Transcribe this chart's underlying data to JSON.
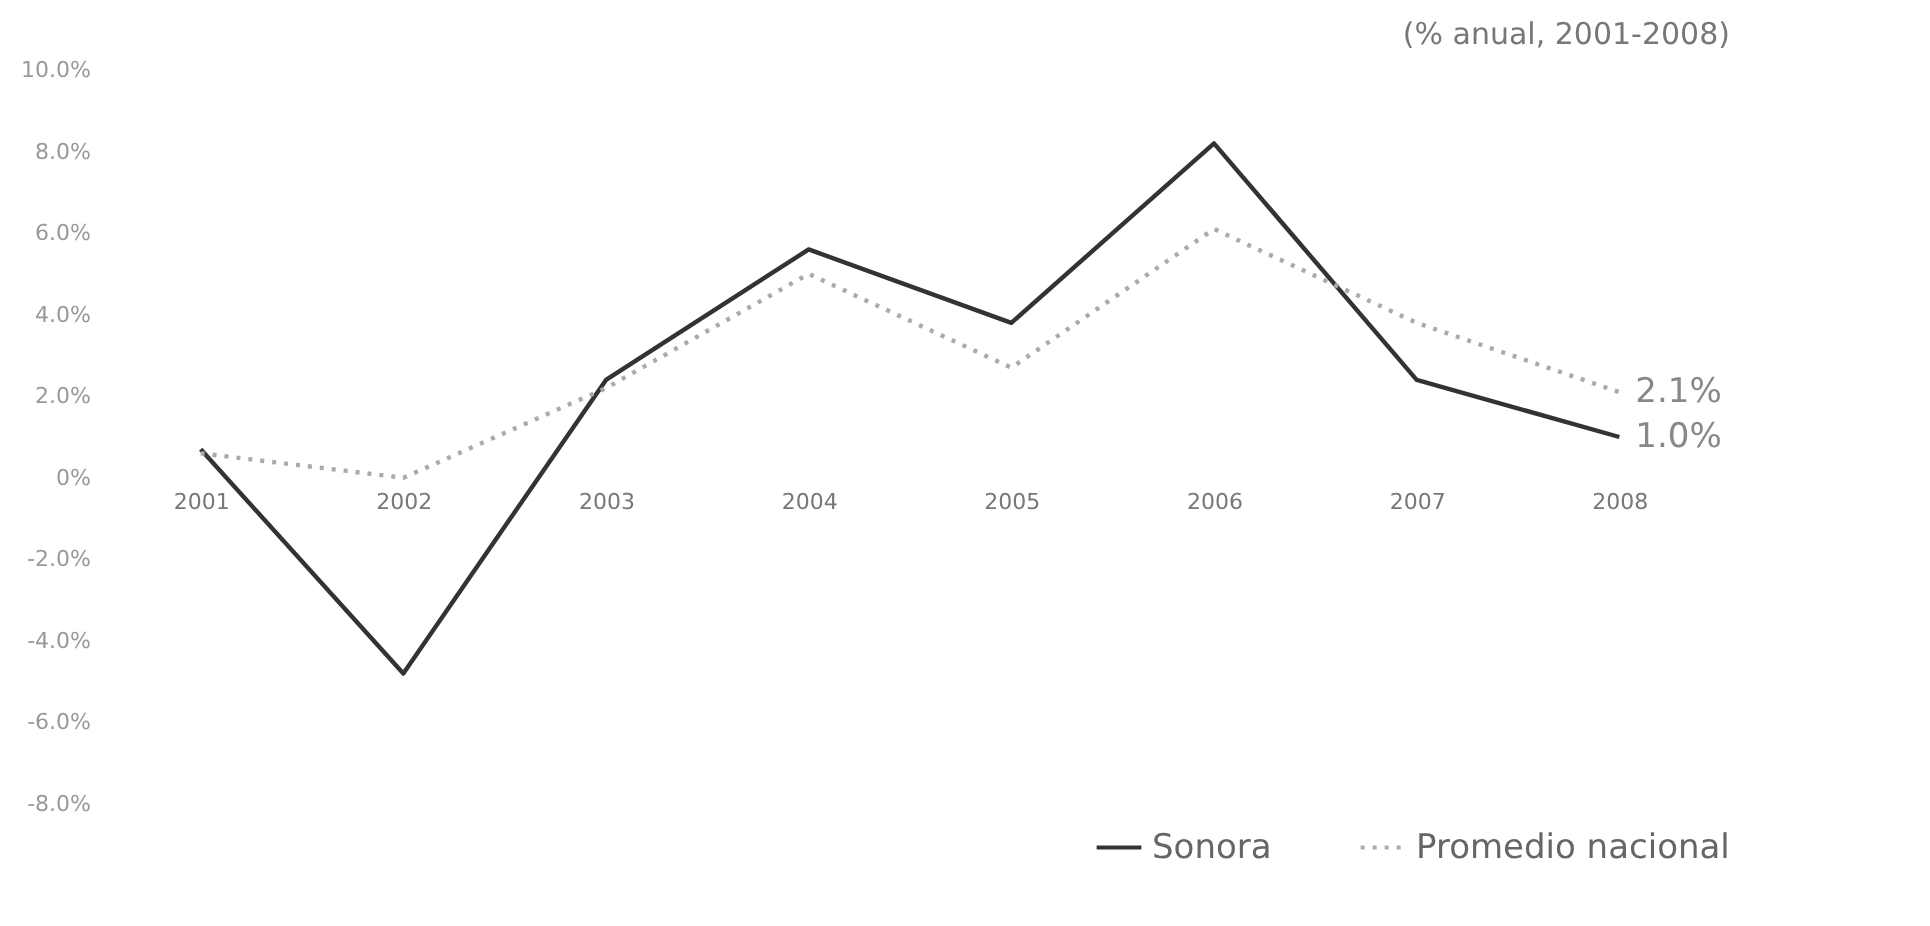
{
  "chart_data": {
    "type": "line",
    "title": "(% anual, 2001-2008)",
    "categories": [
      "2001",
      "2002",
      "2003",
      "2004",
      "2005",
      "2006",
      "2007",
      "2008"
    ],
    "series": [
      {
        "name": "Sonora",
        "color": "#333333",
        "line_style": "solid",
        "values": [
          0.7,
          -4.8,
          2.4,
          5.6,
          3.8,
          8.2,
          2.4,
          1.0
        ],
        "value_labels": [
          null,
          null,
          null,
          null,
          null,
          null,
          null,
          "1.0%"
        ]
      },
      {
        "name": "Promedio nacional",
        "color": "#aaaaaa",
        "line_style": "dotted",
        "values": [
          0.6,
          0.0,
          2.2,
          5.0,
          2.7,
          6.1,
          3.8,
          2.1
        ],
        "value_labels": [
          null,
          null,
          null,
          null,
          null,
          null,
          null,
          "2.1%"
        ]
      }
    ],
    "ylim": [
      -8,
      10
    ],
    "yticks": [
      {
        "value": -8,
        "label": "-8.0%"
      },
      {
        "value": -6,
        "label": "-6.0%"
      },
      {
        "value": -4,
        "label": "-4.0%"
      },
      {
        "value": -2,
        "label": "-2.0%"
      },
      {
        "value": 0,
        "label": "0%"
      },
      {
        "value": 2,
        "label": "2.0%"
      },
      {
        "value": 4,
        "label": "4.0%"
      },
      {
        "value": 6,
        "label": "6.0%"
      },
      {
        "value": 8,
        "label": "8.0%"
      },
      {
        "value": 10,
        "label": "10.0%"
      }
    ],
    "grid": false,
    "legend": "bottom right",
    "marker": "none"
  }
}
